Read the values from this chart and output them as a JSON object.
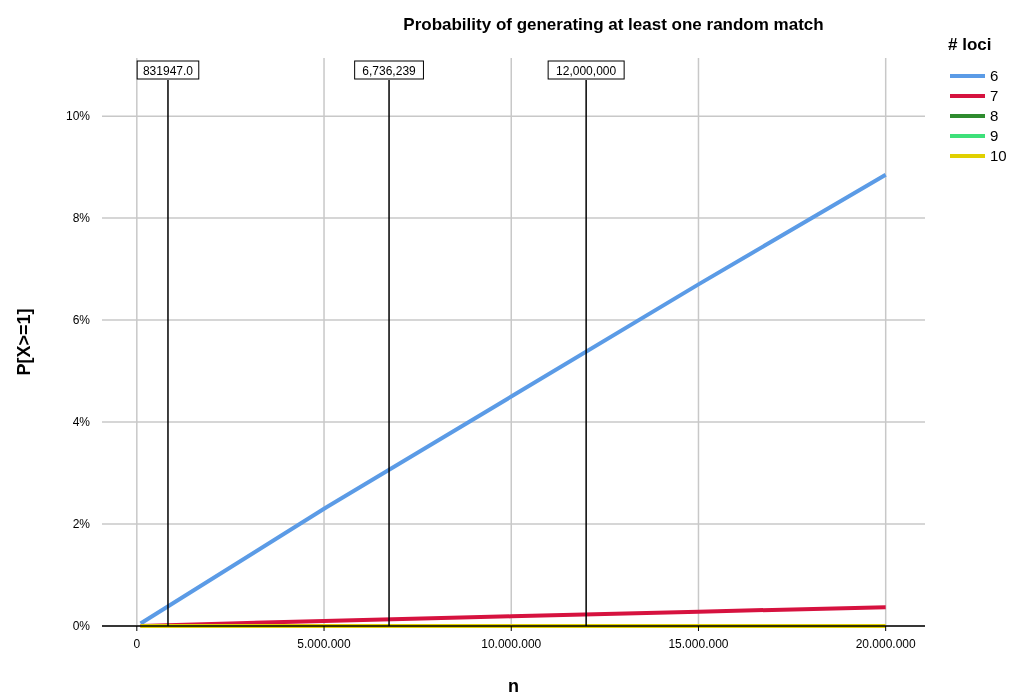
{
  "chart_data": {
    "type": "line",
    "title": "Probability of generating at least one random match",
    "xlabel": "n",
    "ylabel": "P[X>=1]",
    "legend_title": "# loci",
    "x": [
      100000,
      5000000,
      10000000,
      15000000,
      20000000
    ],
    "series": [
      {
        "name": "6",
        "color": "#5b9be6",
        "values": [
          0.05,
          2.3,
          4.5,
          6.7,
          8.85
        ]
      },
      {
        "name": "7",
        "color": "#d6123f",
        "values": [
          0,
          0.1,
          0.19,
          0.28,
          0.37
        ]
      },
      {
        "name": "8",
        "color": "#2e8b2e",
        "values": [
          null,
          null,
          null,
          null,
          null
        ]
      },
      {
        "name": "9",
        "color": "#3ee07a",
        "values": [
          null,
          null,
          null,
          null,
          null
        ]
      },
      {
        "name": "10",
        "color": "#e0d000",
        "values": [
          0,
          0,
          0,
          0,
          0
        ]
      }
    ],
    "xlim": [
      -930000,
      21050000
    ],
    "xticks": [
      0,
      {
        "value": 5000000,
        "label": "5.000.000"
      },
      {
        "value": 10000000,
        "label": "10.000.000"
      },
      {
        "value": 15000000,
        "label": "15.000.000"
      },
      {
        "value": 20000000,
        "label": "20.000.000"
      }
    ],
    "ylim": [
      0,
      11.14
    ],
    "yticks": [
      {
        "value": 0,
        "label": "0%"
      },
      {
        "value": 2,
        "label": "2%"
      },
      {
        "value": 4,
        "label": "4%"
      },
      {
        "value": 6,
        "label": "6%"
      },
      {
        "value": 8,
        "label": "8%"
      },
      {
        "value": 10,
        "label": "10%"
      }
    ],
    "ref_lines": [
      {
        "axis": "x",
        "value": 831947,
        "label": "831947.0",
        "color": "#000000"
      },
      {
        "axis": "x",
        "value": 6736239,
        "label": "6,736,239",
        "color": "#000000"
      },
      {
        "axis": "x",
        "value": 12000000,
        "label": "12,000,000",
        "color": "#000000"
      }
    ],
    "grid": true,
    "legend": "top right",
    "marker": "none",
    "line_style": "solid"
  }
}
